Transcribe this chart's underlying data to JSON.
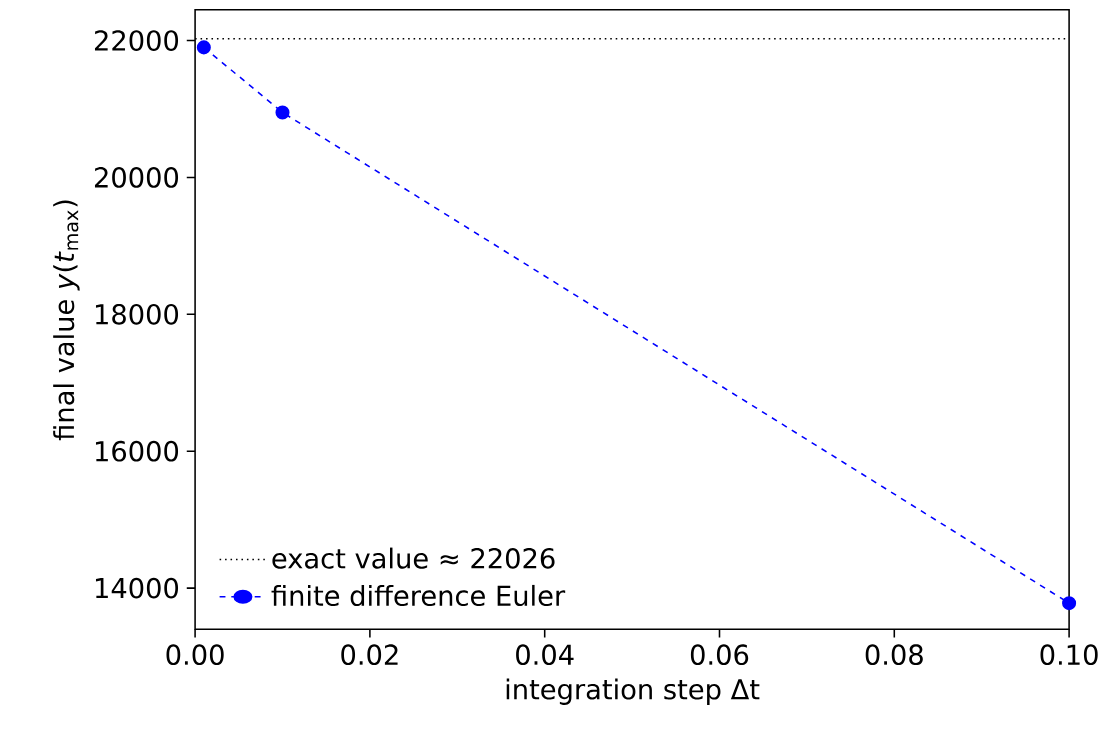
{
  "chart_data": {
    "type": "line",
    "xlabel": "integration step Δt",
    "ylabel": "final value *y*(*t*$_{max}$)",
    "x": [
      0.001,
      0.01,
      0.1
    ],
    "series": [
      {
        "name": "finite difference Euler",
        "color": "#0000ff",
        "values": [
          21900,
          20950,
          13780
        ],
        "marker": "circle",
        "line_style": "dashed"
      }
    ],
    "ref_lines": [
      {
        "axis": "y",
        "value": 22026,
        "label": "exact value ≈ 22026",
        "color": "#000000",
        "line_style": "dotted"
      }
    ],
    "xlim": [
      0,
      0.1
    ],
    "ylim": [
      13400,
      22450
    ],
    "xticks": [
      {
        "value": 0,
        "label": "0.00"
      },
      {
        "value": 0.02,
        "label": "0.02"
      },
      {
        "value": 0.04,
        "label": "0.04"
      },
      {
        "value": 0.06,
        "label": "0.06"
      },
      {
        "value": 0.08,
        "label": "0.08"
      },
      {
        "value": 0.1,
        "label": "0.10"
      }
    ],
    "yticks": [
      14000,
      16000,
      18000,
      20000,
      22000
    ],
    "legend": "bottom left"
  }
}
